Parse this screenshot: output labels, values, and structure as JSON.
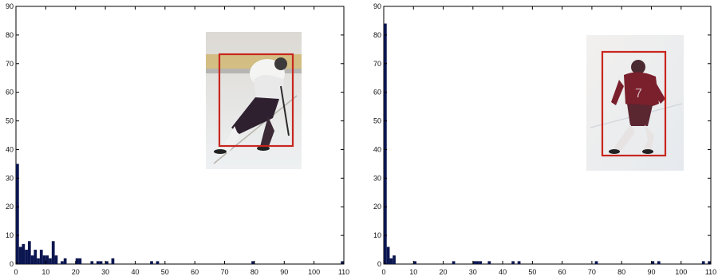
{
  "chart_data": [
    {
      "type": "bar",
      "title": "",
      "xlabel": "",
      "ylabel": "",
      "xlim": [
        0,
        110
      ],
      "ylim": [
        0,
        90
      ],
      "xticks": [
        "0",
        "10",
        "20",
        "30",
        "40",
        "50",
        "60",
        "70",
        "80",
        "90",
        "100",
        "110"
      ],
      "yticks": [
        "0",
        "10",
        "20",
        "30",
        "40",
        "50",
        "60",
        "70",
        "80",
        "90"
      ],
      "bin_width": 1,
      "bar_color": "#0b1650",
      "x": [
        0,
        1,
        2,
        3,
        4,
        5,
        6,
        7,
        8,
        9,
        10,
        11,
        12,
        13,
        15,
        16,
        20,
        21,
        25,
        27,
        28,
        30,
        32,
        45,
        47,
        79,
        109
      ],
      "values": [
        35,
        6,
        7,
        5,
        8,
        3,
        5,
        2,
        5,
        3,
        3,
        2,
        8,
        3,
        1,
        2,
        2,
        2,
        1,
        1,
        1,
        1,
        2,
        1,
        1,
        1,
        1
      ],
      "inset": {
        "description_colors": {
          "box": "#c8261e",
          "jersey": "#f2f2f2",
          "pants": "#3a2330",
          "ice": "#e9eef1",
          "board": "#c9a23a"
        }
      }
    },
    {
      "type": "bar",
      "title": "",
      "xlabel": "",
      "ylabel": "",
      "xlim": [
        0,
        110
      ],
      "ylim": [
        0,
        90
      ],
      "xticks": [
        "0",
        "10",
        "20",
        "30",
        "40",
        "50",
        "60",
        "70",
        "80",
        "90",
        "100",
        "110"
      ],
      "yticks": [
        "0",
        "10",
        "20",
        "30",
        "40",
        "50",
        "60",
        "70",
        "80",
        "90"
      ],
      "bin_width": 1,
      "bar_color": "#0b1650",
      "x": [
        0,
        1,
        2,
        3,
        10,
        23,
        30,
        31,
        32,
        35,
        43,
        45,
        71,
        90,
        92,
        107,
        109
      ],
      "values": [
        84,
        6,
        2,
        3,
        1,
        1,
        1,
        1,
        1,
        1,
        1,
        1,
        1,
        1,
        1,
        1,
        1
      ],
      "inset": {
        "description_colors": {
          "box": "#c8261e",
          "jersey": "#7a1f2c",
          "pants": "#5a2630",
          "ice": "#eceff1",
          "board": "#ffffff"
        }
      }
    }
  ]
}
